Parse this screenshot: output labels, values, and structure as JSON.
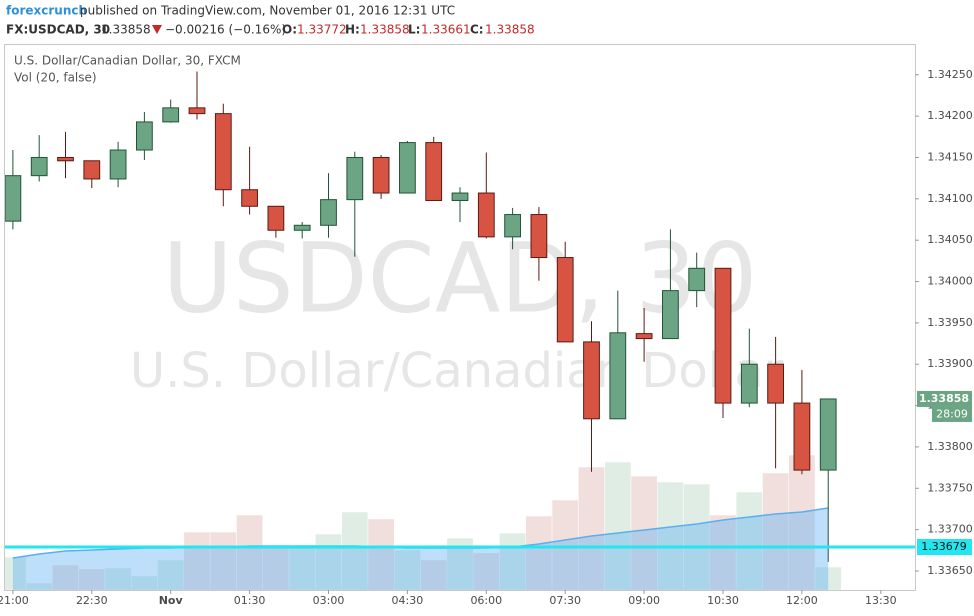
{
  "header": {
    "author": "forexcrunch",
    "published": "published on TradingView.com, November 01, 2016 12:31 UTC",
    "symbol": "FX:USDCAD, 30",
    "last": "1.33858",
    "change": "−0.00216 (−0.16%)",
    "o_label": "O:",
    "o": "1.33772",
    "h_label": "H:",
    "h": "1.33858",
    "l_label": "L:",
    "l": "1.33661",
    "c_label": "C:",
    "c": "1.33858"
  },
  "chart_data": {
    "type": "candlestick",
    "legend_title": "U.S. Dollar/Canadian Dollar, 30, FXCM",
    "volume_label": "Vol (20, false)",
    "watermark": [
      "USDCAD, 30",
      "U.S. Dollar/Canadian Dollar"
    ],
    "open": [
      1.34073,
      1.34128,
      1.3415,
      1.34146,
      1.34124,
      1.34159,
      1.34193,
      1.3421,
      1.34203,
      1.34111,
      1.34091,
      1.34062,
      1.34068,
      1.34099,
      1.3415,
      1.34107,
      1.34168,
      1.34098,
      1.34107,
      1.34054,
      1.34081,
      1.34029,
      1.33927,
      1.33834,
      1.33937,
      1.33931,
      1.33989,
      1.34016,
      1.33853,
      1.339,
      1.33853,
      1.33772
    ],
    "high": [
      1.34159,
      1.34177,
      1.34181,
      1.34146,
      1.34169,
      1.34205,
      1.3422,
      1.34254,
      1.34215,
      1.34163,
      1.34091,
      1.34072,
      1.34131,
      1.34157,
      1.34153,
      1.3417,
      1.34175,
      1.34114,
      1.34156,
      1.34089,
      1.3409,
      1.34048,
      1.33952,
      1.33989,
      1.33968,
      1.34063,
      1.34035,
      1.34016,
      1.33943,
      1.33933,
      1.33893,
      1.33858
    ],
    "low": [
      1.34063,
      1.34121,
      1.34125,
      1.34113,
      1.34114,
      1.34147,
      1.34192,
      1.34196,
      1.34091,
      1.34081,
      1.34053,
      1.34052,
      1.34053,
      1.3403,
      1.341,
      1.34107,
      1.34098,
      1.34072,
      1.34052,
      1.34039,
      1.34001,
      1.33927,
      1.3377,
      1.33834,
      1.33903,
      1.33931,
      1.33969,
      1.33835,
      1.33848,
      1.33774,
      1.33767,
      1.33661
    ],
    "close": [
      1.34128,
      1.3415,
      1.34146,
      1.34124,
      1.34159,
      1.34193,
      1.3421,
      1.34203,
      1.34111,
      1.34091,
      1.34062,
      1.34068,
      1.34099,
      1.3415,
      1.34107,
      1.34168,
      1.34098,
      1.34107,
      1.34054,
      1.34081,
      1.34029,
      1.33927,
      1.33834,
      1.33938,
      1.33931,
      1.33989,
      1.34016,
      1.33853,
      1.339,
      1.33853,
      1.33772,
      1.33858
    ],
    "up_color": "#6ba583",
    "up_border": "#225437",
    "down_color": "#d75442",
    "down_border": "#5b1a13",
    "volume": [
      33,
      7,
      25,
      21,
      22,
      14,
      30,
      58,
      58,
      75,
      42,
      42,
      56,
      78,
      71,
      40,
      30,
      52,
      37,
      57,
      74,
      90,
      123,
      128,
      114,
      108,
      106,
      75,
      98,
      117,
      135,
      23
    ],
    "volume_ma": [
      32,
      36,
      39,
      40,
      41,
      42,
      42,
      43,
      43,
      44,
      44,
      44,
      44,
      44,
      43,
      42,
      42,
      42,
      42,
      43,
      46,
      50,
      54,
      57,
      60,
      63,
      66,
      70,
      73,
      76,
      78,
      82
    ],
    "volume_lim": [
      0,
      545
    ],
    "volume_up_color": "#d9eadf",
    "volume_down_color": "#eed9d8",
    "volume_ma_color": "#5aaff0",
    "ylim": [
      1.33627,
      1.34286
    ],
    "yticks": [
      {
        "value": 1.3425,
        "label": "1.34250"
      },
      {
        "value": 1.342,
        "label": "1.34200"
      },
      {
        "value": 1.3415,
        "label": "1.34150"
      },
      {
        "value": 1.341,
        "label": "1.34100"
      },
      {
        "value": 1.3405,
        "label": "1.34050"
      },
      {
        "value": 1.34,
        "label": "1.34000"
      },
      {
        "value": 1.3395,
        "label": "1.33950"
      },
      {
        "value": 1.339,
        "label": "1.33900"
      },
      {
        "value": 1.3385,
        "label": "1.33850"
      },
      {
        "value": 1.338,
        "label": "1.33800"
      },
      {
        "value": 1.3375,
        "label": "1.33750"
      },
      {
        "value": 1.337,
        "label": "1.33700"
      },
      {
        "value": 1.3365,
        "label": "1.33650"
      }
    ],
    "xlim": [
      -0.3,
      34.3
    ],
    "xticks": [
      {
        "value": 0,
        "label": "21:00"
      },
      {
        "value": 3,
        "label": "22:30"
      },
      {
        "value": 6,
        "label": "Nov"
      },
      {
        "value": 9,
        "label": "01:30"
      },
      {
        "value": 12,
        "label": "03:00"
      },
      {
        "value": 15,
        "label": "04:30"
      },
      {
        "value": 18,
        "label": "06:00"
      },
      {
        "value": 21,
        "label": "07:30"
      },
      {
        "value": 24,
        "label": "09:00"
      },
      {
        "value": 27,
        "label": "10:30"
      },
      {
        "value": 30,
        "label": "12:00"
      },
      {
        "value": 33,
        "label": "13:30"
      }
    ],
    "last_price": 1.33858,
    "countdown": "28:09",
    "hline": 1.33679,
    "hline_color": "#22e6f0"
  }
}
